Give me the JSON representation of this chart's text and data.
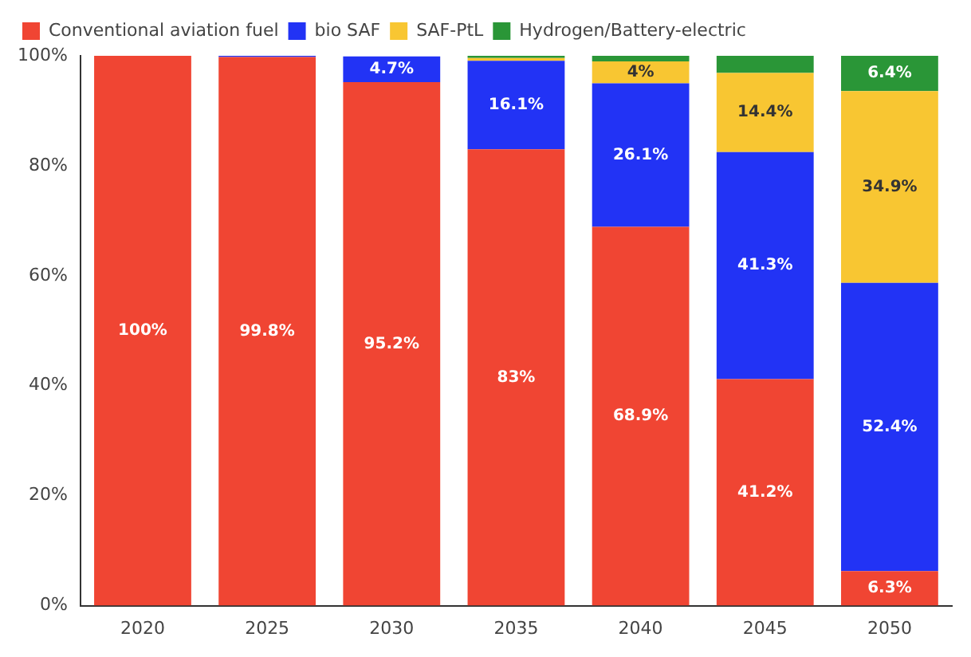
{
  "chart_data": {
    "type": "bar",
    "stacked": true,
    "categories": [
      "2020",
      "2025",
      "2030",
      "2035",
      "2040",
      "2045",
      "2050"
    ],
    "series": [
      {
        "name": "Conventional aviation fuel",
        "color": "#f04533",
        "values": [
          100,
          99.8,
          95.2,
          83,
          68.9,
          41.2,
          6.3
        ],
        "value_labels": [
          "100%",
          "99.8%",
          "95.2%",
          "83%",
          "68.9%",
          "41.2%",
          "6.3%"
        ]
      },
      {
        "name": "bio SAF",
        "color": "#2233f5",
        "values": [
          0,
          0.2,
          4.7,
          16.1,
          26.1,
          41.3,
          52.4
        ],
        "value_labels": [
          null,
          null,
          "4.7%",
          "16.1%",
          "26.1%",
          "41.3%",
          "52.4%"
        ]
      },
      {
        "name": "SAF-PtL",
        "color": "#f8c632",
        "values": [
          0,
          0,
          0,
          0.5,
          4,
          14.4,
          34.9
        ],
        "value_labels": [
          null,
          null,
          null,
          null,
          "4%",
          "14.4%",
          "34.9%"
        ]
      },
      {
        "name": "Hydrogen/Battery-electric",
        "color": "#2a9637",
        "values": [
          0,
          0,
          0,
          0.4,
          1,
          3.1,
          6.4
        ],
        "value_labels": [
          null,
          null,
          null,
          null,
          null,
          null,
          "6.4%"
        ]
      }
    ],
    "ylim": [
      0,
      100
    ],
    "yticks": [
      {
        "value": 0,
        "label": "0%"
      },
      {
        "value": 20,
        "label": "20%"
      },
      {
        "value": 40,
        "label": "40%"
      },
      {
        "value": 60,
        "label": "60%"
      },
      {
        "value": 80,
        "label": "80%"
      },
      {
        "value": 100,
        "label": "100%"
      }
    ],
    "grid": false,
    "legend": "top left"
  }
}
